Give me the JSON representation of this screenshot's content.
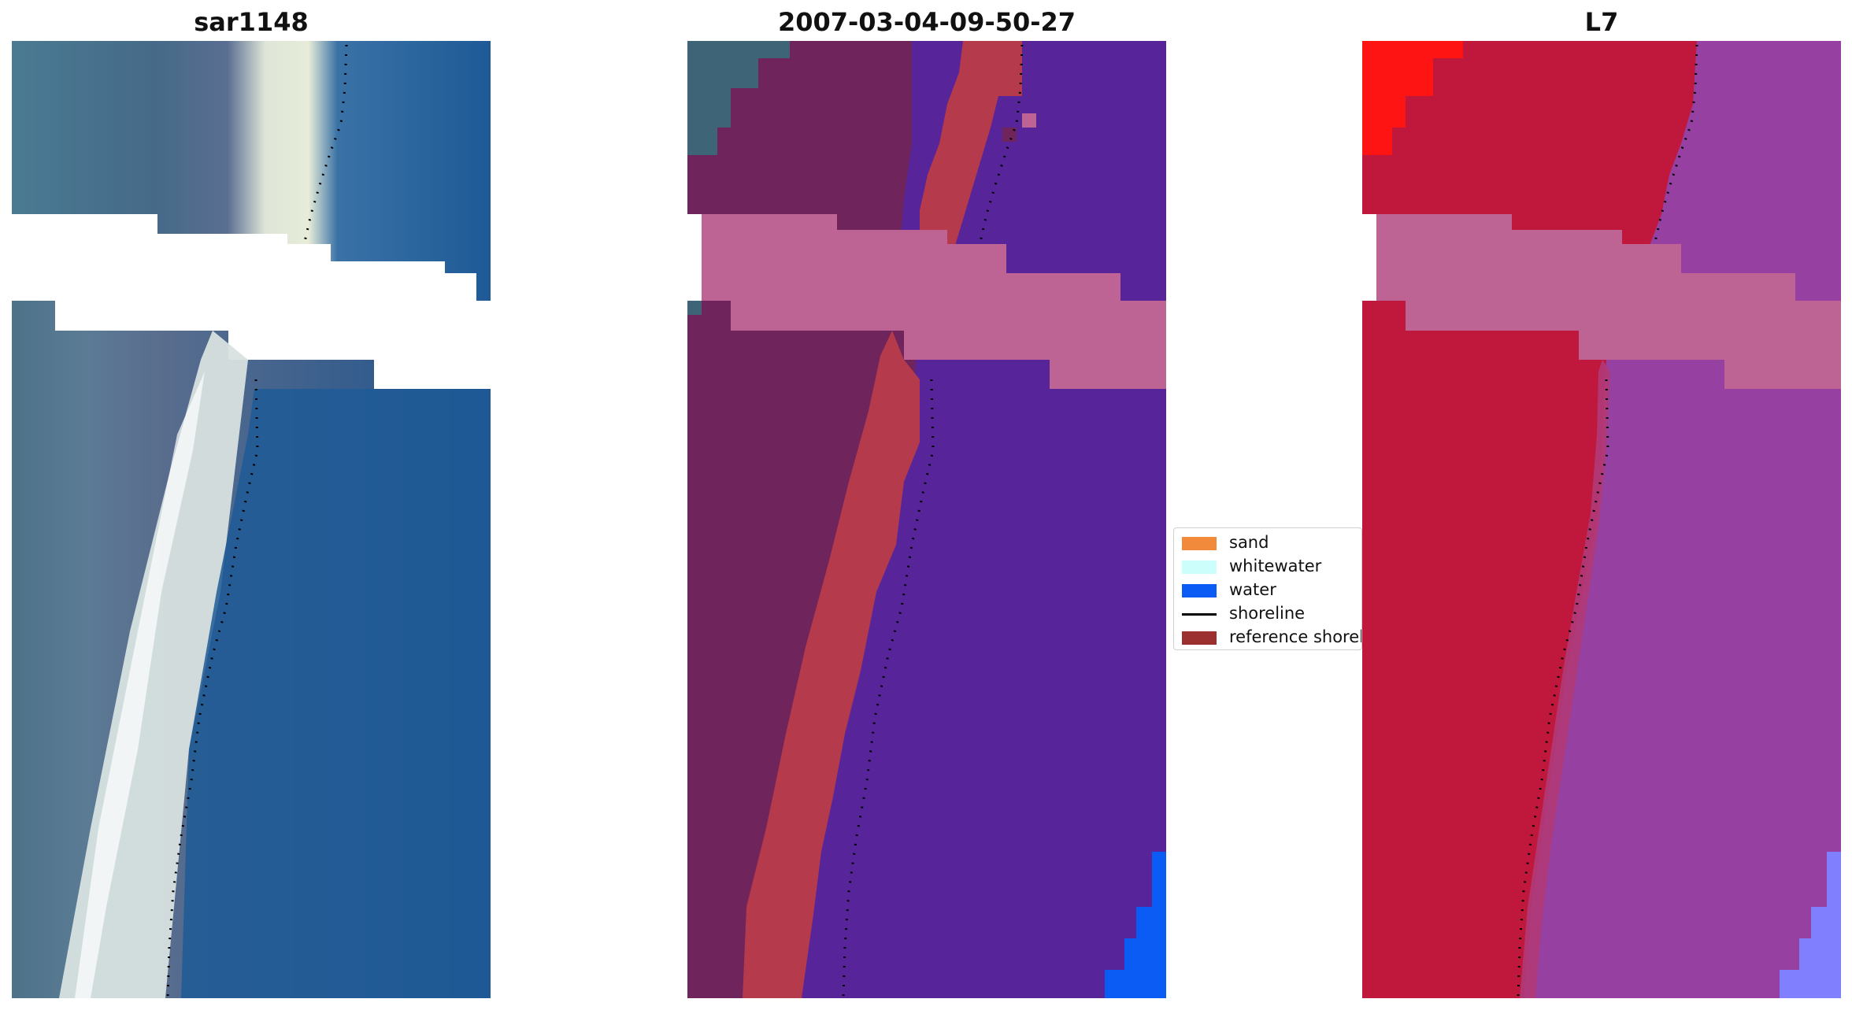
{
  "panels": [
    {
      "title": "sar1148"
    },
    {
      "title": "2007-03-04-09-50-27"
    },
    {
      "title": "L7"
    }
  ],
  "legend": {
    "items": [
      {
        "label": "sand",
        "color": "#f28a3c",
        "kind": "patch"
      },
      {
        "label": "whitewater",
        "color": "#ccfffc",
        "kind": "patch"
      },
      {
        "label": "water",
        "color": "#0a5cf4",
        "kind": "patch"
      },
      {
        "label": "shoreline",
        "color": "#000000",
        "kind": "line"
      },
      {
        "label": "reference shoreline",
        "color": "#9c3030",
        "kind": "patch"
      }
    ]
  },
  "colors": {
    "rgb_sea": "#1f5c97",
    "rgb_land": "#456e8c",
    "rgb_whitewater": "#e6eee2",
    "class_land": "#70245c",
    "class_sand": "#b43a4c",
    "class_water": "#57249a",
    "class_cloudmask": "#bd6494",
    "swir_land": "#c0183c",
    "swir_water": "#9640a2",
    "swir_bright_red": "#ff1414",
    "swir_lightblue": "#8080ff"
  }
}
